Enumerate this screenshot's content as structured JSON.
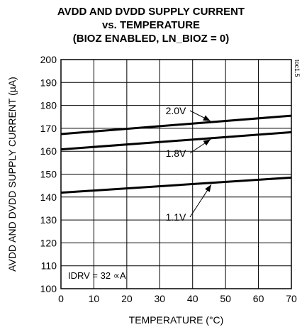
{
  "chart_data": {
    "type": "line",
    "title_lines": [
      "AVDD AND DVDD SUPPLY CURRENT",
      "vs. TEMPERATURE",
      "(BIOZ ENABLED, LN_BIOZ = 0)"
    ],
    "xlabel": "TEMPERATURE (°C)",
    "ylabel": "AVDD AND DVDD SUPPLY CURRENT (µA)",
    "xlim": [
      0,
      70
    ],
    "ylim": [
      100,
      200
    ],
    "xticks": [
      "0",
      "10",
      "20",
      "30",
      "40",
      "50",
      "60",
      "70"
    ],
    "yticks": [
      "100",
      "110",
      "120",
      "130",
      "140",
      "150",
      "160",
      "170",
      "180",
      "190",
      "200"
    ],
    "grid": true,
    "series": [
      {
        "name": "2.0V",
        "x": [
          0,
          70
        ],
        "y": [
          167.5,
          175.5
        ]
      },
      {
        "name": "1.8V",
        "x": [
          0,
          70
        ],
        "y": [
          160.8,
          168.3
        ]
      },
      {
        "name": "1.1V",
        "x": [
          0,
          70
        ],
        "y": [
          141.9,
          148.5
        ]
      }
    ],
    "annotations": [
      {
        "text": "2.0V",
        "target_series": "2.0V",
        "at_x": 46
      },
      {
        "text": "1.8V",
        "target_series": "1.8V",
        "at_x": 46
      },
      {
        "text": "1.1V",
        "target_series": "1.1V",
        "at_x": 46
      }
    ],
    "condition_note": "IDRV = 32 ∝A",
    "figure_id": "toc1.5"
  }
}
